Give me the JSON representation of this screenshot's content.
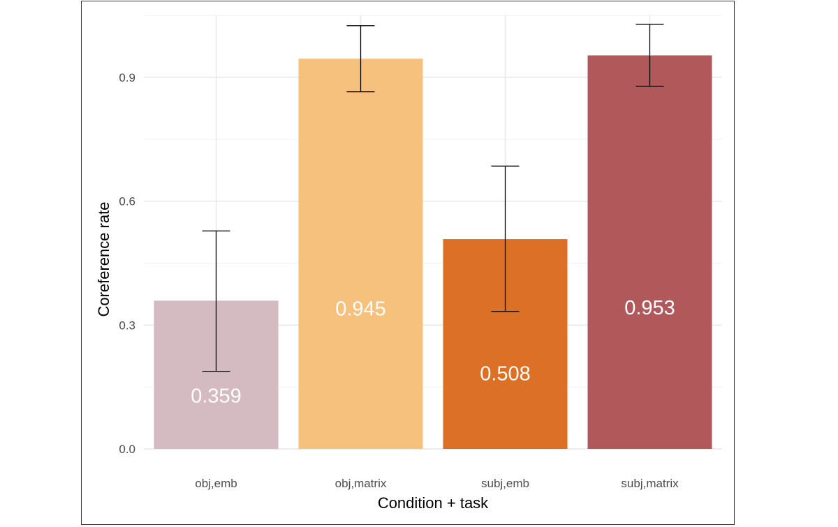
{
  "chart_data": {
    "type": "bar",
    "title": "",
    "xlabel": "Condition + task",
    "ylabel": "Coreference rate",
    "categories": [
      "obj,emb",
      "obj,matrix",
      "subj,emb",
      "subj,matrix"
    ],
    "values": [
      0.359,
      0.945,
      0.508,
      0.953
    ],
    "value_labels": [
      "0.359",
      "0.945",
      "0.508",
      "0.953"
    ],
    "error_bars": [
      {
        "low": 0.188,
        "high": 0.528
      },
      {
        "low": 0.865,
        "high": 1.025
      },
      {
        "low": 0.333,
        "high": 0.685
      },
      {
        "low": 0.878,
        "high": 1.028
      }
    ],
    "colors": [
      "#d4bbc2",
      "#f6c17d",
      "#dc7027",
      "#b0585a"
    ],
    "ylim": [
      0,
      1.05
    ],
    "yticks": [
      0.0,
      0.3,
      0.6,
      0.9
    ],
    "ytick_labels": [
      "0.0",
      "0.3",
      "0.6",
      "0.9"
    ],
    "grid": true,
    "legend": "none"
  }
}
